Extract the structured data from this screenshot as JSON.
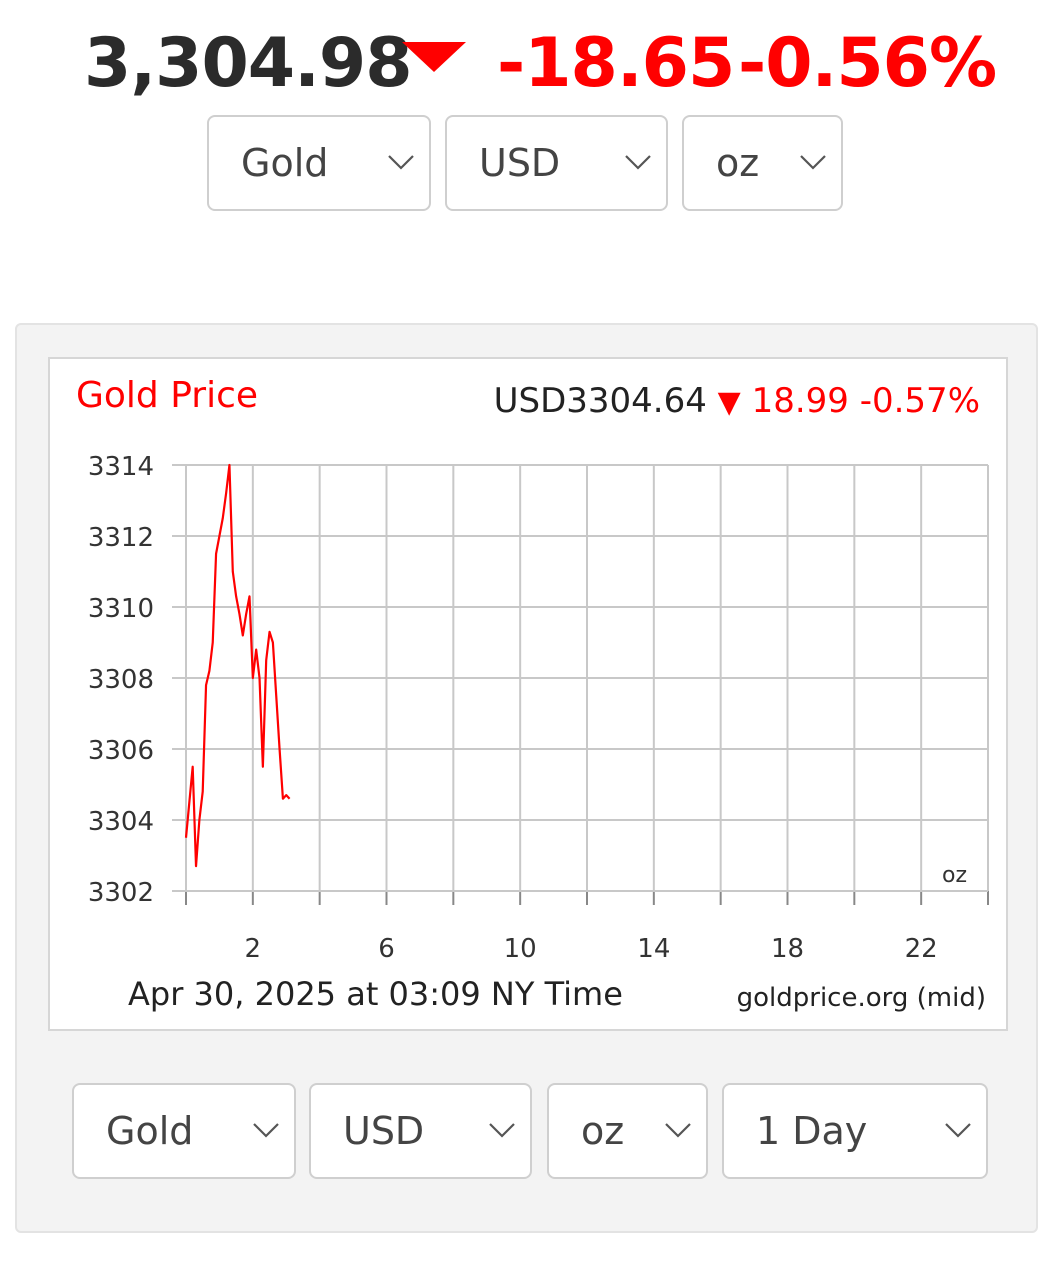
{
  "ticker": {
    "price": "3,304.98",
    "change": "-18.65",
    "change_pct": "-0.56%",
    "direction": "down",
    "color_down": "#ff0000"
  },
  "top_selectors": [
    {
      "value": "Gold"
    },
    {
      "value": "USD"
    },
    {
      "value": "oz"
    }
  ],
  "chart_header": {
    "title": "Gold Price",
    "price": "USD3304.64",
    "arrow": "▼",
    "change": "18.99",
    "change_pct": "-0.57%",
    "unit": "oz",
    "timestamp": "Apr 30, 2025 at 03:09 NY Time",
    "source": "goldprice.org (mid)"
  },
  "chart_data": {
    "type": "line",
    "title": "Gold Price",
    "xlabel": "",
    "ylabel": "",
    "xlim": [
      0,
      24
    ],
    "ylim": [
      3302,
      3314
    ],
    "x_ticks": [
      2,
      6,
      10,
      14,
      18,
      22
    ],
    "y_ticks": [
      3302,
      3304,
      3306,
      3308,
      3310,
      3312,
      3314
    ],
    "grid": true,
    "series": [
      {
        "color": "#ff0000",
        "x": [
          0,
          0.1,
          0.2,
          0.3,
          0.4,
          0.5,
          0.6,
          0.7,
          0.8,
          0.9,
          1.0,
          1.1,
          1.2,
          1.3,
          1.4,
          1.5,
          1.6,
          1.7,
          1.8,
          1.9,
          2.0,
          2.1,
          2.2,
          2.3,
          2.4,
          2.5,
          2.6,
          2.7,
          2.8,
          2.9,
          3.0,
          3.1
        ],
        "y": [
          3303.5,
          3304.5,
          3305.5,
          3302.7,
          3304.0,
          3304.8,
          3307.8,
          3308.2,
          3309.0,
          3311.5,
          3312.0,
          3312.5,
          3313.2,
          3314.0,
          3311.0,
          3310.3,
          3309.8,
          3309.2,
          3309.8,
          3310.3,
          3308.0,
          3308.8,
          3308.0,
          3305.5,
          3308.5,
          3309.3,
          3309.0,
          3307.5,
          3306.0,
          3304.6,
          3304.7,
          3304.6
        ]
      }
    ]
  },
  "bottom_selectors": [
    {
      "value": "Gold"
    },
    {
      "value": "USD"
    },
    {
      "value": "oz"
    },
    {
      "value": "1 Day"
    }
  ]
}
